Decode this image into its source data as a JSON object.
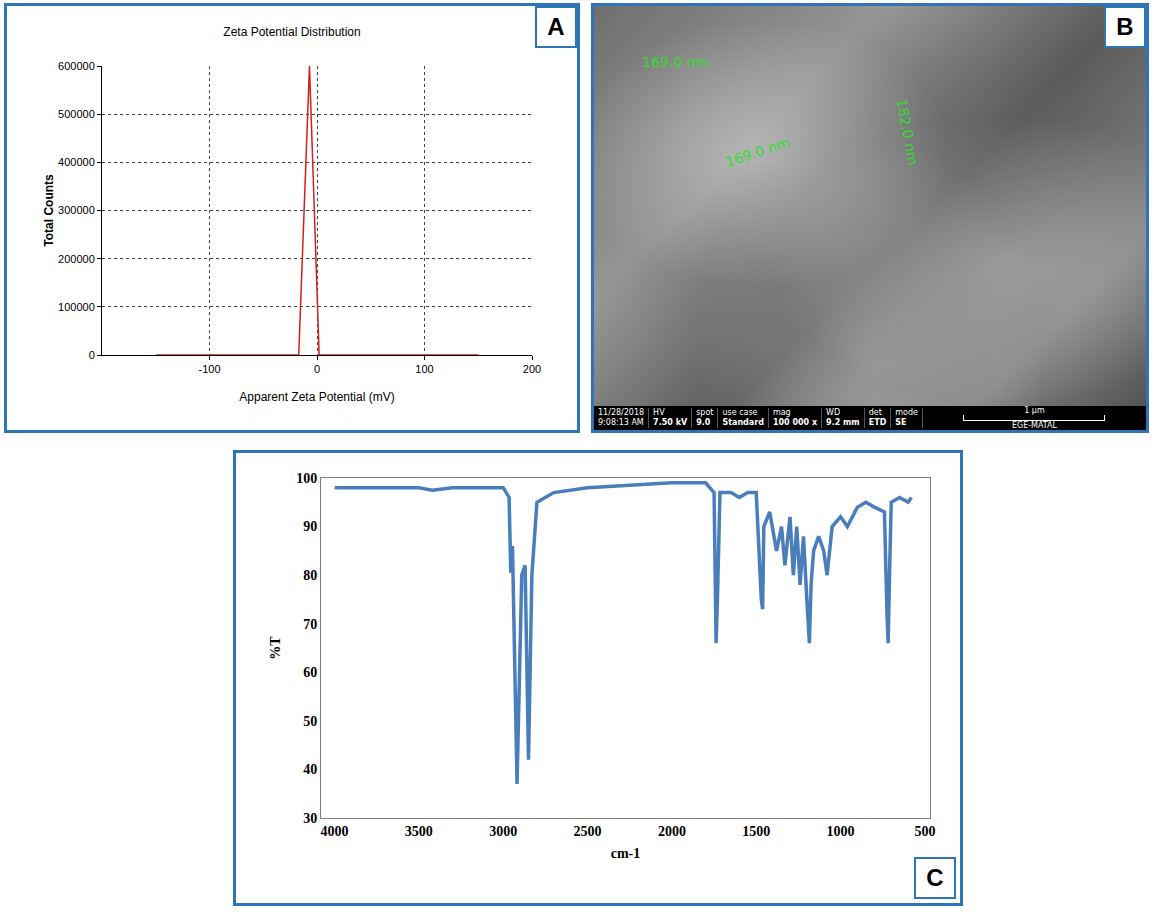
{
  "chart_data": [
    {
      "panel_label": "A",
      "type": "line",
      "title": "Zeta Potential Distribution",
      "x_label": "Apparent Zeta Potential (mV)",
      "y_label": "Total Counts",
      "x": [
        -150,
        -17,
        -7,
        2,
        150
      ],
      "values": [
        0,
        0,
        600000,
        0,
        0
      ],
      "color": "#d21f1f",
      "xlim": [
        -200,
        200
      ],
      "xticks": [
        -100,
        0,
        100,
        200
      ],
      "ylim": [
        0,
        600000
      ],
      "yticks": [
        0,
        100000,
        200000,
        300000,
        400000,
        500000,
        600000
      ],
      "grid": true
    },
    {
      "panel_label": "C",
      "type": "line",
      "x_label": "cm-1",
      "y_label": "%T",
      "x": [
        4000,
        3500,
        3420,
        3300,
        3000,
        2965,
        2955,
        2945,
        2918,
        2890,
        2870,
        2850,
        2830,
        2800,
        2700,
        2500,
        2000,
        1900,
        1800,
        1750,
        1738,
        1730,
        1715,
        1650,
        1600,
        1550,
        1500,
        1470,
        1462,
        1455,
        1420,
        1380,
        1350,
        1330,
        1300,
        1280,
        1260,
        1240,
        1220,
        1200,
        1185,
        1175,
        1160,
        1130,
        1100,
        1080,
        1050,
        1000,
        960,
        900,
        850,
        800,
        740,
        725,
        718,
        710,
        700,
        650,
        600,
        580
      ],
      "values": [
        98,
        98,
        97.5,
        98,
        98,
        96,
        80.5,
        86,
        37,
        80,
        82,
        42,
        80,
        95,
        97,
        98,
        99,
        99,
        99,
        97,
        66,
        75,
        97,
        97,
        96,
        97,
        97,
        75,
        73,
        90,
        93,
        85,
        90,
        82,
        92,
        80,
        90,
        78,
        88,
        75,
        66,
        78,
        85,
        88,
        85,
        80,
        90,
        92,
        90,
        94,
        95,
        94,
        93,
        72,
        66,
        80,
        95,
        96,
        95,
        96
      ],
      "color": "#4a7ebb",
      "xlim": [
        4080,
        470
      ],
      "xticks": [
        4000,
        3500,
        3000,
        2500,
        2000,
        1500,
        1000,
        500
      ],
      "ylim": [
        30,
        100
      ],
      "yticks": [
        30,
        40,
        50,
        60,
        70,
        80,
        90,
        100
      ],
      "grid": false
    }
  ],
  "image": {
    "panel_label": "B",
    "measurements": [
      "169.0 nm",
      "169.0 nm",
      "182.0 nm"
    ],
    "info_bar": {
      "date": "11/28/2018",
      "time": "9:08:13 AM",
      "fields": [
        {
          "head": "HV",
          "value": "7.50 kV"
        },
        {
          "head": "spot",
          "value": "9.0"
        },
        {
          "head": "use case",
          "value": "Standard"
        },
        {
          "head": "mag",
          "value": "100 000 x"
        },
        {
          "head": "WD",
          "value": "9.2 mm"
        },
        {
          "head": "det",
          "value": "ETD"
        },
        {
          "head": "mode",
          "value": "SE"
        }
      ],
      "scale_bar": "1 μm",
      "lab": "EGE-MATAL"
    }
  }
}
